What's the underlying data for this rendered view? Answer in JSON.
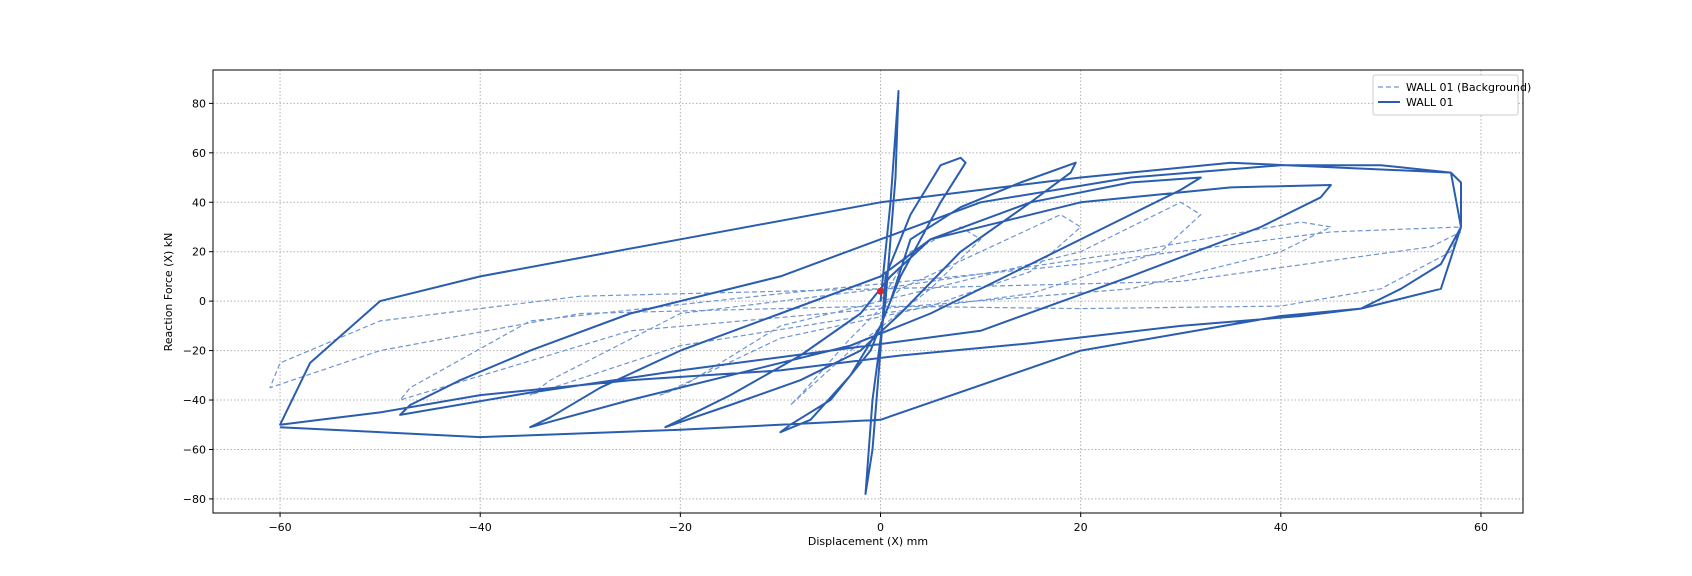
{
  "chart_data": {
    "type": "line",
    "xlabel": "Displacement (X) mm",
    "ylabel": "Reaction Force (X) kN",
    "xlim": [
      -66.7,
      64.2
    ],
    "ylim": [
      -85.7,
      93.5
    ],
    "xticks": [
      {
        "value": -60,
        "label": "−60"
      },
      {
        "value": -40,
        "label": "−40"
      },
      {
        "value": -20,
        "label": "−20"
      },
      0,
      20,
      40,
      60
    ],
    "yticks": [
      {
        "value": -80,
        "label": "−80"
      },
      {
        "value": -60,
        "label": "−60"
      },
      {
        "value": -40,
        "label": "−40"
      },
      {
        "value": -20,
        "label": "−20"
      },
      0,
      20,
      40,
      60,
      80
    ],
    "grid": true,
    "legend": "upper right",
    "series": [
      {
        "name": "WALL 01 (Background)",
        "color": "#6f94d0",
        "dashed": true,
        "x": [
          0,
          3,
          8,
          10,
          5,
          -3,
          -9,
          -8,
          -3,
          2,
          10,
          18,
          20,
          15,
          5,
          -10,
          -22,
          -20,
          -10,
          5,
          20,
          30,
          32,
          28,
          15,
          0,
          -20,
          -35,
          -33,
          -20,
          0,
          25,
          42,
          45,
          40,
          25,
          0,
          -25,
          -48,
          -47,
          -35,
          -10,
          20,
          45,
          58,
          57,
          50,
          40,
          20,
          0,
          -30,
          -50,
          -61,
          -60,
          -50,
          -30,
          0,
          30,
          55,
          58
        ],
        "values": [
          0,
          20,
          30,
          25,
          5,
          -20,
          -42,
          -38,
          -15,
          5,
          20,
          35,
          30,
          12,
          -2,
          -15,
          -38,
          -35,
          -10,
          5,
          20,
          40,
          35,
          20,
          3,
          -5,
          -18,
          -38,
          -32,
          -5,
          5,
          20,
          32,
          30,
          20,
          5,
          -3,
          -12,
          -40,
          -35,
          -8,
          3,
          15,
          28,
          30,
          20,
          5,
          -2,
          -3,
          -2,
          -5,
          -20,
          -35,
          -25,
          -8,
          2,
          5,
          8,
          22,
          28
        ]
      },
      {
        "name": "WALL 01",
        "color": "#2a5db0",
        "dashed": false,
        "x": [
          0,
          1,
          1.8,
          1.5,
          0.5,
          -0.8,
          -1.5,
          -0.8,
          0,
          0.5,
          3,
          6,
          8,
          8.5,
          6,
          2,
          0,
          -3,
          -7,
          -10,
          -9,
          -5,
          -1,
          1,
          3,
          8,
          14,
          19.5,
          19,
          15,
          8,
          2,
          -2,
          -8,
          -15,
          -21.5,
          -20,
          -15,
          -8,
          -2,
          1,
          5,
          15,
          25,
          32,
          30,
          25,
          15,
          5,
          -3,
          -15,
          -25,
          -35,
          -33,
          -28,
          -20,
          -10,
          0,
          5,
          20,
          35,
          45,
          44,
          38,
          25,
          10,
          -5,
          -20,
          -35,
          -48,
          -47,
          -42,
          -35,
          -25,
          -10,
          0,
          10,
          25,
          40,
          50,
          57,
          58,
          58,
          56,
          52,
          48,
          42,
          30,
          15,
          2,
          -10,
          -25,
          -40,
          -50,
          -56,
          -60,
          -57,
          -50,
          -40,
          -20,
          0,
          20,
          35,
          57,
          58,
          56,
          48,
          40,
          20,
          0,
          -20,
          -40,
          -60
        ],
        "values": [
          0,
          40,
          85,
          50,
          0,
          -40,
          -78,
          -60,
          -20,
          10,
          35,
          55,
          58,
          56,
          40,
          10,
          -10,
          -30,
          -48,
          -53,
          -50,
          -40,
          -20,
          0,
          25,
          38,
          48,
          56,
          52,
          40,
          20,
          -5,
          -20,
          -32,
          -42,
          -51,
          -48,
          -38,
          -22,
          -5,
          10,
          25,
          40,
          48,
          50,
          45,
          35,
          15,
          -5,
          -18,
          -30,
          -40,
          -51,
          -47,
          -35,
          -20,
          -5,
          10,
          25,
          40,
          46,
          47,
          42,
          30,
          10,
          -12,
          -20,
          -28,
          -37,
          -46,
          -42,
          -32,
          -20,
          -5,
          10,
          25,
          40,
          50,
          55,
          55,
          52,
          48,
          30,
          15,
          5,
          -3,
          -6,
          -10,
          -17,
          -22,
          -28,
          -32,
          -38,
          -45,
          -48,
          -50,
          -25,
          0,
          10,
          25,
          40,
          50,
          56,
          52,
          30,
          5,
          -3,
          -6,
          -20,
          -48,
          -52,
          -55,
          -51
        ]
      }
    ],
    "marker": {
      "x": 0,
      "y": 4,
      "color": "#d62728"
    }
  }
}
